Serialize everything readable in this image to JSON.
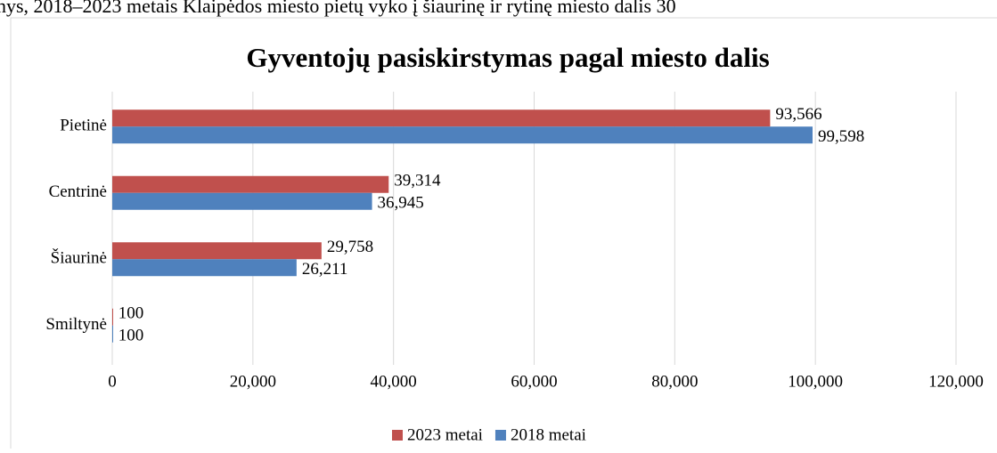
{
  "document": {
    "text_line": "nys, 2018–2023 metais Klaipėdos miesto pietų vyko į šiaurinę ir rytinę miesto dalis 30"
  },
  "chart_data": {
    "type": "bar",
    "orientation": "horizontal",
    "title": "Gyventojų pasiskirstymas pagal miesto dalis",
    "categories": [
      "Pietinė",
      "Centrinė",
      "Šiaurinė",
      "Smiltynė"
    ],
    "series": [
      {
        "name": "2023 metai",
        "color": "#c0504d",
        "values": [
          93566,
          39314,
          29758,
          100
        ],
        "value_labels": [
          "93,566",
          "39,314",
          "29,758",
          "100"
        ]
      },
      {
        "name": "2018 metai",
        "color": "#4f81bd",
        "values": [
          99598,
          36945,
          26211,
          100
        ],
        "value_labels": [
          "99,598",
          "36,945",
          "26,211",
          "100"
        ]
      }
    ],
    "xlim": [
      0,
      120000
    ],
    "xticks": [
      0,
      {
        "value": 20000,
        "label": "20,000"
      },
      {
        "value": 40000,
        "label": "40,000"
      },
      {
        "value": 60000,
        "label": "60,000"
      },
      {
        "value": 80000,
        "label": "80,000"
      },
      {
        "value": 100000,
        "label": "100,000"
      },
      {
        "value": 120000,
        "label": "120,000"
      }
    ],
    "grid": true,
    "legend": "bottom"
  }
}
